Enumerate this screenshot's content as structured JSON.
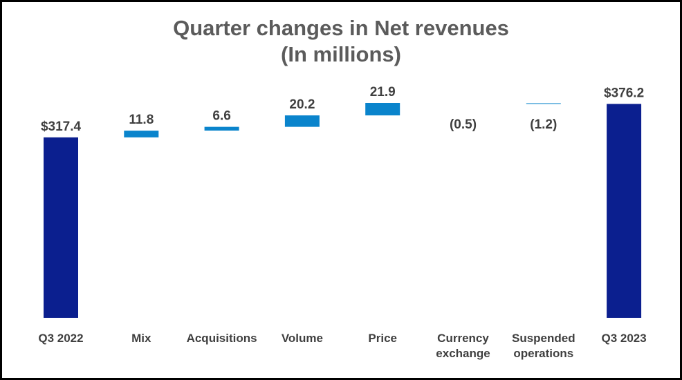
{
  "chart_data": {
    "type": "bar",
    "subtype": "waterfall",
    "title": "Quarter changes in Net revenues",
    "subtitle": "(In millions)",
    "categories": [
      "Q3 2022",
      "Mix",
      "Acquisitions",
      "Volume",
      "Price",
      "Currency\nexchange",
      "Suspended\noperations",
      "Q3 2023"
    ],
    "values": [
      317.4,
      11.8,
      6.6,
      20.2,
      21.9,
      -0.5,
      -1.2,
      376.2
    ],
    "kinds": [
      "total",
      "delta",
      "delta",
      "delta",
      "delta",
      "delta",
      "delta",
      "total"
    ],
    "data_labels": [
      "$317.4",
      "11.8",
      "6.6",
      "20.2",
      "21.9",
      "(0.5)",
      "(1.2)",
      "$376.2"
    ],
    "colors": {
      "total": "#0b1f8f",
      "delta": "#0a84cc",
      "title": "#5b5b5b",
      "label": "#3f3f3f"
    },
    "grid": false,
    "legend": "none"
  }
}
